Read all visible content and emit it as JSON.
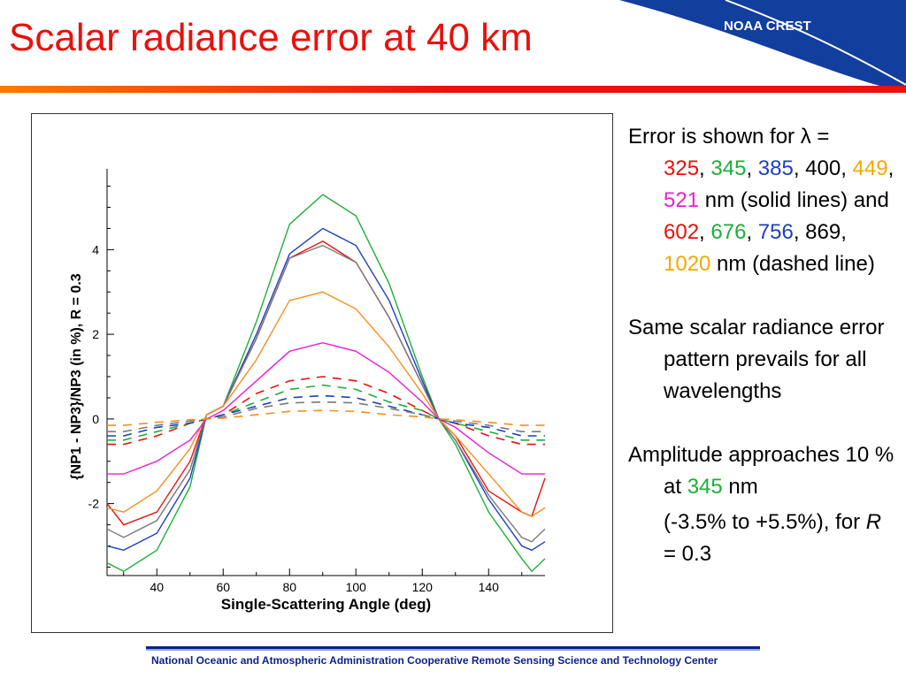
{
  "slide": {
    "title": "Scalar radiance error at 40 km",
    "logo_text": "NOAA CREST",
    "footer": "National Oceanic and Atmospheric Administration Cooperative Remote Sensing Science and Technology Center",
    "colors": {
      "title": "#e8110c",
      "accent_blue": "#0a1f8f",
      "logo_bg": "#123e9e"
    }
  },
  "bullets": {
    "b1": {
      "t1": "Error is shown for λ =",
      "w325": "325",
      "s1": ", ",
      "w345": "345",
      "s2": ", ",
      "w385": "385",
      "s3": ", 400, ",
      "w449": "449",
      "s4": ", ",
      "w521": "521",
      "t2": " nm (solid lines) and ",
      "w602": "602",
      "s5": ", ",
      "w676": "676",
      "s6": ", ",
      "w756": "756",
      "s7": ", 869, ",
      "w1020": "1020",
      "t3": " nm (dashed line)"
    },
    "b2": "Same scalar radiance error pattern prevails for all wavelengths",
    "b3": {
      "t1": "Amplitude approaches 10 % at ",
      "w345": "345",
      "t2": " nm"
    },
    "b4": {
      "t1": "(-3.5% to +5.5%), for ",
      "r": "R",
      "t2": " = 0.3"
    }
  },
  "chart_data": {
    "type": "line",
    "xlabel": "Single-Scattering Angle (deg)",
    "ylabel": "{NP1 - NP3}/NP3 (in %), R = 0.3",
    "xlim": [
      25,
      157
    ],
    "ylim": [
      -3.7,
      5.7
    ],
    "xticks": [
      40,
      60,
      80,
      100,
      120,
      140
    ],
    "yticks": [
      -2,
      0,
      2,
      4
    ],
    "x": [
      25,
      30,
      40,
      50,
      55,
      60,
      70,
      80,
      90,
      100,
      110,
      120,
      125,
      130,
      140,
      150,
      153,
      157
    ],
    "series": [
      {
        "color": "#1fae3a",
        "dash": false,
        "values": [
          -3.4,
          -3.6,
          -3.1,
          -1.6,
          0.1,
          0.3,
          2.3,
          4.6,
          5.3,
          4.8,
          3.2,
          1.0,
          0.0,
          -0.6,
          -2.2,
          -3.3,
          -3.6,
          -3.3
        ]
      },
      {
        "color": "#1d3fbf",
        "dash": false,
        "values": [
          -3.0,
          -3.1,
          -2.7,
          -1.4,
          0.1,
          0.3,
          2.0,
          3.9,
          4.5,
          4.1,
          2.8,
          0.9,
          0.0,
          -0.5,
          -1.9,
          -3.0,
          -3.1,
          -2.9
        ]
      },
      {
        "color": "#e8110c",
        "dash": false,
        "values": [
          -2.0,
          -2.5,
          -2.2,
          -1.0,
          0.1,
          0.3,
          1.9,
          3.8,
          4.2,
          3.7,
          2.4,
          0.8,
          0.0,
          -0.4,
          -1.7,
          -2.2,
          -2.3,
          -1.4
        ]
      },
      {
        "color": "#7a7a7a",
        "dash": false,
        "values": [
          -2.6,
          -2.8,
          -2.4,
          -1.2,
          0.1,
          0.3,
          1.9,
          3.8,
          4.1,
          3.7,
          2.4,
          0.8,
          0.0,
          -0.5,
          -1.8,
          -2.8,
          -2.9,
          -2.6
        ]
      },
      {
        "color": "#f58f1f",
        "dash": false,
        "values": [
          -2.1,
          -2.2,
          -1.7,
          -0.7,
          0.1,
          0.3,
          1.4,
          2.8,
          3.0,
          2.6,
          1.7,
          0.6,
          0.0,
          -0.4,
          -1.3,
          -2.2,
          -2.3,
          -2.1
        ]
      },
      {
        "color": "#e81fd6",
        "dash": false,
        "values": [
          -1.3,
          -1.3,
          -1.0,
          -0.5,
          0.0,
          0.2,
          0.9,
          1.6,
          1.8,
          1.6,
          1.1,
          0.4,
          0.0,
          -0.2,
          -0.8,
          -1.3,
          -1.3,
          -1.3
        ]
      },
      {
        "color": "#e8110c",
        "dash": true,
        "values": [
          -0.6,
          -0.6,
          -0.4,
          -0.1,
          0.0,
          0.1,
          0.6,
          0.9,
          1.0,
          0.9,
          0.6,
          0.2,
          0.0,
          -0.1,
          -0.4,
          -0.6,
          -0.6,
          -0.6
        ]
      },
      {
        "color": "#1fae3a",
        "dash": true,
        "values": [
          -0.5,
          -0.5,
          -0.3,
          -0.1,
          0.0,
          0.1,
          0.4,
          0.7,
          0.8,
          0.7,
          0.4,
          0.2,
          0.0,
          -0.1,
          -0.3,
          -0.5,
          -0.5,
          -0.5
        ]
      },
      {
        "color": "#1d3fbf",
        "dash": true,
        "values": [
          -0.4,
          -0.4,
          -0.2,
          -0.1,
          0.0,
          0.1,
          0.3,
          0.5,
          0.55,
          0.5,
          0.3,
          0.1,
          0.0,
          -0.1,
          -0.2,
          -0.4,
          -0.4,
          -0.4
        ]
      },
      {
        "color": "#7a7a7a",
        "dash": true,
        "values": [
          -0.3,
          -0.3,
          -0.15,
          -0.05,
          0.0,
          0.05,
          0.25,
          0.38,
          0.4,
          0.38,
          0.25,
          0.1,
          0.0,
          -0.05,
          -0.15,
          -0.3,
          -0.3,
          -0.3
        ]
      },
      {
        "color": "#f58f1f",
        "dash": true,
        "values": [
          -0.15,
          -0.15,
          -0.08,
          -0.02,
          0.0,
          0.02,
          0.1,
          0.18,
          0.2,
          0.18,
          0.1,
          0.05,
          0.0,
          -0.02,
          -0.08,
          -0.15,
          -0.15,
          -0.15
        ]
      }
    ]
  }
}
